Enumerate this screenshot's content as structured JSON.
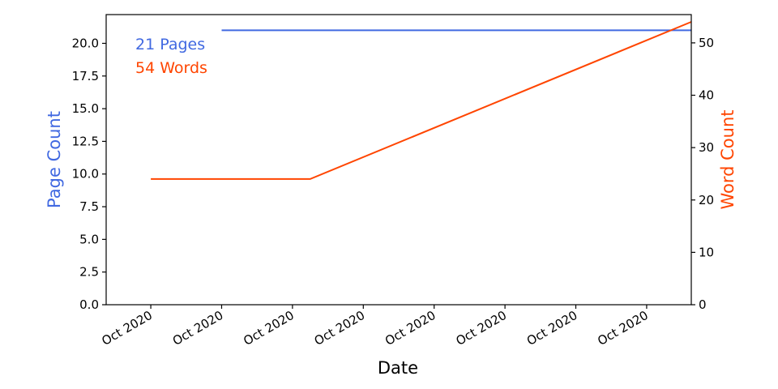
{
  "chart_data": {
    "type": "line",
    "xlabel": "Date",
    "x_tick_labels": [
      "Oct 2020",
      "Oct 2020",
      "Oct 2020",
      "Oct 2020",
      "Oct 2020",
      "Oct 2020",
      "Oct 2020",
      "Oct 2020"
    ],
    "x_ticks": [
      0,
      1,
      2,
      3,
      4,
      5,
      6,
      7
    ],
    "xlim": [
      -0.63,
      7.63
    ],
    "ylabel_left": "Page Count",
    "ylabel_right": "Word Count",
    "ylim_left": [
      0,
      22.2
    ],
    "ylim_right": [
      0,
      55.4
    ],
    "yticks_left": [
      "0.0",
      "2.5",
      "5.0",
      "7.5",
      "10.0",
      "12.5",
      "15.0",
      "17.5",
      "20.0"
    ],
    "yticks_right": [
      "0",
      "10",
      "20",
      "30",
      "40",
      "50"
    ],
    "annotations": [
      {
        "text": "21 Pages",
        "color": "#4169e1"
      },
      {
        "text": "54 Words",
        "color": "#ff4500"
      }
    ],
    "series": [
      {
        "axis": "left",
        "color": "#4169e1",
        "x": [
          1.0,
          7.63
        ],
        "values": [
          21,
          21
        ]
      },
      {
        "axis": "right",
        "color": "#ff4500",
        "x": [
          0,
          2.25,
          7.63
        ],
        "values": [
          24,
          24,
          54
        ]
      }
    ]
  }
}
